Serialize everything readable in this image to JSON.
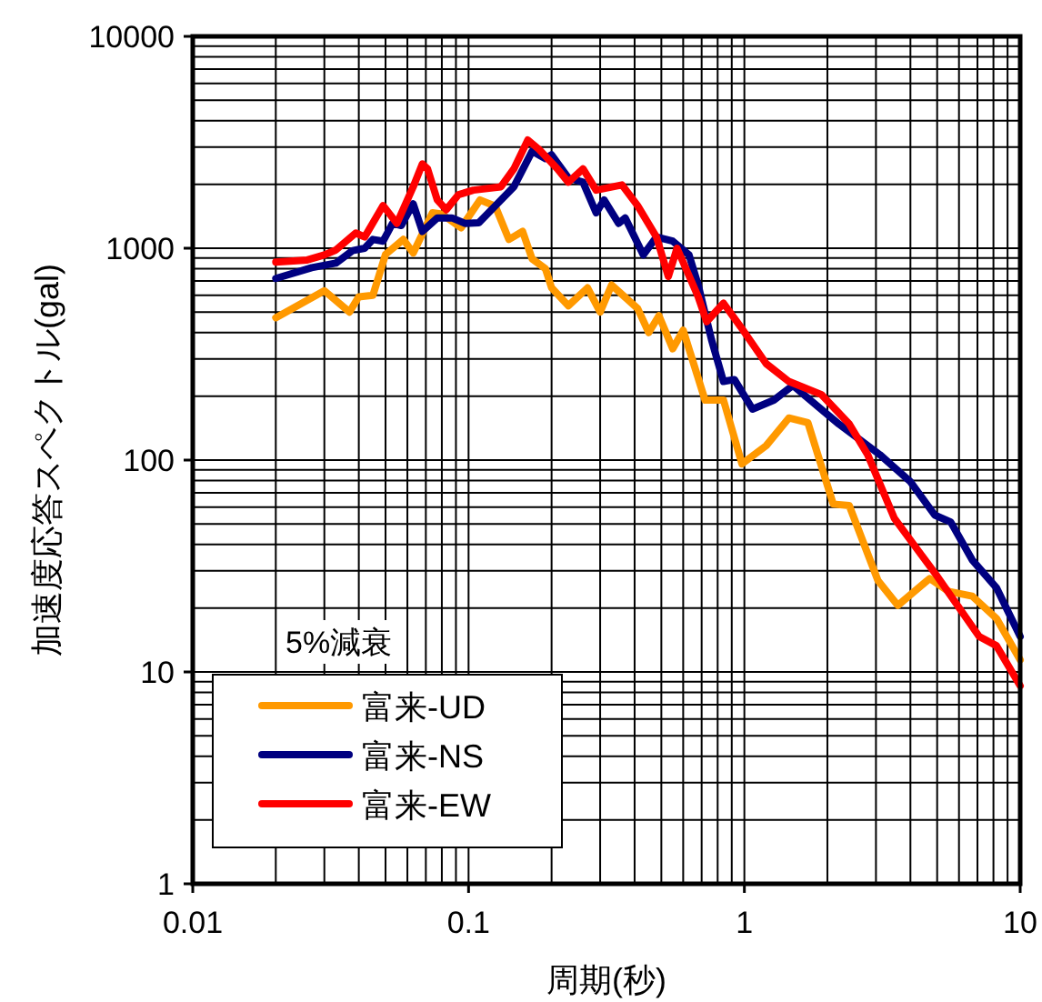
{
  "chart_data": {
    "type": "line",
    "xlabel": "周期(秒)",
    "ylabel": "加速度応答スペクトル(gal)",
    "log": "xy",
    "xlim": [
      0.01,
      10
    ],
    "ylim": [
      1,
      10000
    ],
    "xticks": [
      0.01,
      0.1,
      1,
      10
    ],
    "yticks": [
      1,
      10,
      100,
      1000,
      10000
    ],
    "grid": true,
    "legend": "bottom left",
    "legend_title": "5%減衰",
    "line_style": "solid",
    "series": [
      {
        "name": "富来-UD",
        "color": "#ff9900",
        "x": [
          0.02,
          0.03,
          0.037,
          0.04,
          0.045,
          0.05,
          0.058,
          0.063,
          0.074,
          0.08,
          0.094,
          0.11,
          0.125,
          0.14,
          0.157,
          0.17,
          0.19,
          0.2,
          0.23,
          0.27,
          0.3,
          0.33,
          0.41,
          0.45,
          0.49,
          0.55,
          0.6,
          0.72,
          0.84,
          0.98,
          1.2,
          1.45,
          1.7,
          2.0,
          2.1,
          2.4,
          3.05,
          3.6,
          4.7,
          5.5,
          6.7,
          8.2,
          10
        ],
        "values": [
          470,
          630,
          500,
          590,
          600,
          935,
          1100,
          950,
          1470,
          1450,
          1250,
          1690,
          1580,
          1100,
          1200,
          890,
          800,
          650,
          535,
          650,
          500,
          670,
          520,
          400,
          480,
          335,
          410,
          192,
          192,
          96,
          117,
          158,
          150,
          76,
          62,
          61,
          27,
          20.6,
          27.6,
          24,
          22.8,
          17.9,
          11.4
        ]
      },
      {
        "name": "富来-NS",
        "color": "#000080",
        "x": [
          0.02,
          0.027,
          0.033,
          0.038,
          0.042,
          0.045,
          0.049,
          0.053,
          0.057,
          0.063,
          0.068,
          0.077,
          0.087,
          0.097,
          0.109,
          0.127,
          0.146,
          0.17,
          0.19,
          0.2,
          0.23,
          0.26,
          0.29,
          0.31,
          0.35,
          0.37,
          0.43,
          0.48,
          0.55,
          0.63,
          0.68,
          0.76,
          0.84,
          0.92,
          1.07,
          1.28,
          1.5,
          2.2,
          3.1,
          4.0,
          4.9,
          5.6,
          6.7,
          8.2,
          10
        ],
        "values": [
          720,
          810,
          850,
          975,
          1000,
          1100,
          1080,
          1310,
          1280,
          1620,
          1200,
          1390,
          1390,
          1310,
          1320,
          1620,
          1950,
          2870,
          2650,
          2760,
          2150,
          2050,
          1470,
          1690,
          1310,
          1390,
          930,
          1130,
          1080,
          930,
          670,
          370,
          235,
          240,
          174,
          192,
          225,
          148,
          106,
          79,
          55,
          51,
          33.8,
          25,
          14.7
        ]
      },
      {
        "name": "富来-EW",
        "color": "#ff0000",
        "x": [
          0.02,
          0.026,
          0.03,
          0.033,
          0.039,
          0.042,
          0.049,
          0.055,
          0.063,
          0.068,
          0.071,
          0.077,
          0.083,
          0.092,
          0.104,
          0.131,
          0.146,
          0.164,
          0.18,
          0.21,
          0.23,
          0.26,
          0.29,
          0.36,
          0.41,
          0.48,
          0.53,
          0.57,
          0.68,
          0.73,
          0.84,
          0.97,
          1.2,
          1.45,
          1.9,
          2.4,
          2.8,
          3.5,
          5,
          7.1,
          8.2,
          10
        ],
        "values": [
          860,
          880,
          930,
          980,
          1180,
          1130,
          1590,
          1310,
          1950,
          2500,
          2370,
          1690,
          1520,
          1790,
          1880,
          1950,
          2370,
          3240,
          2930,
          2370,
          2050,
          2370,
          1880,
          1990,
          1590,
          1130,
          735,
          1000,
          590,
          450,
          550,
          425,
          285,
          235,
          204,
          148,
          106,
          53,
          28.3,
          14.7,
          13.3,
          8.6
        ]
      }
    ]
  }
}
